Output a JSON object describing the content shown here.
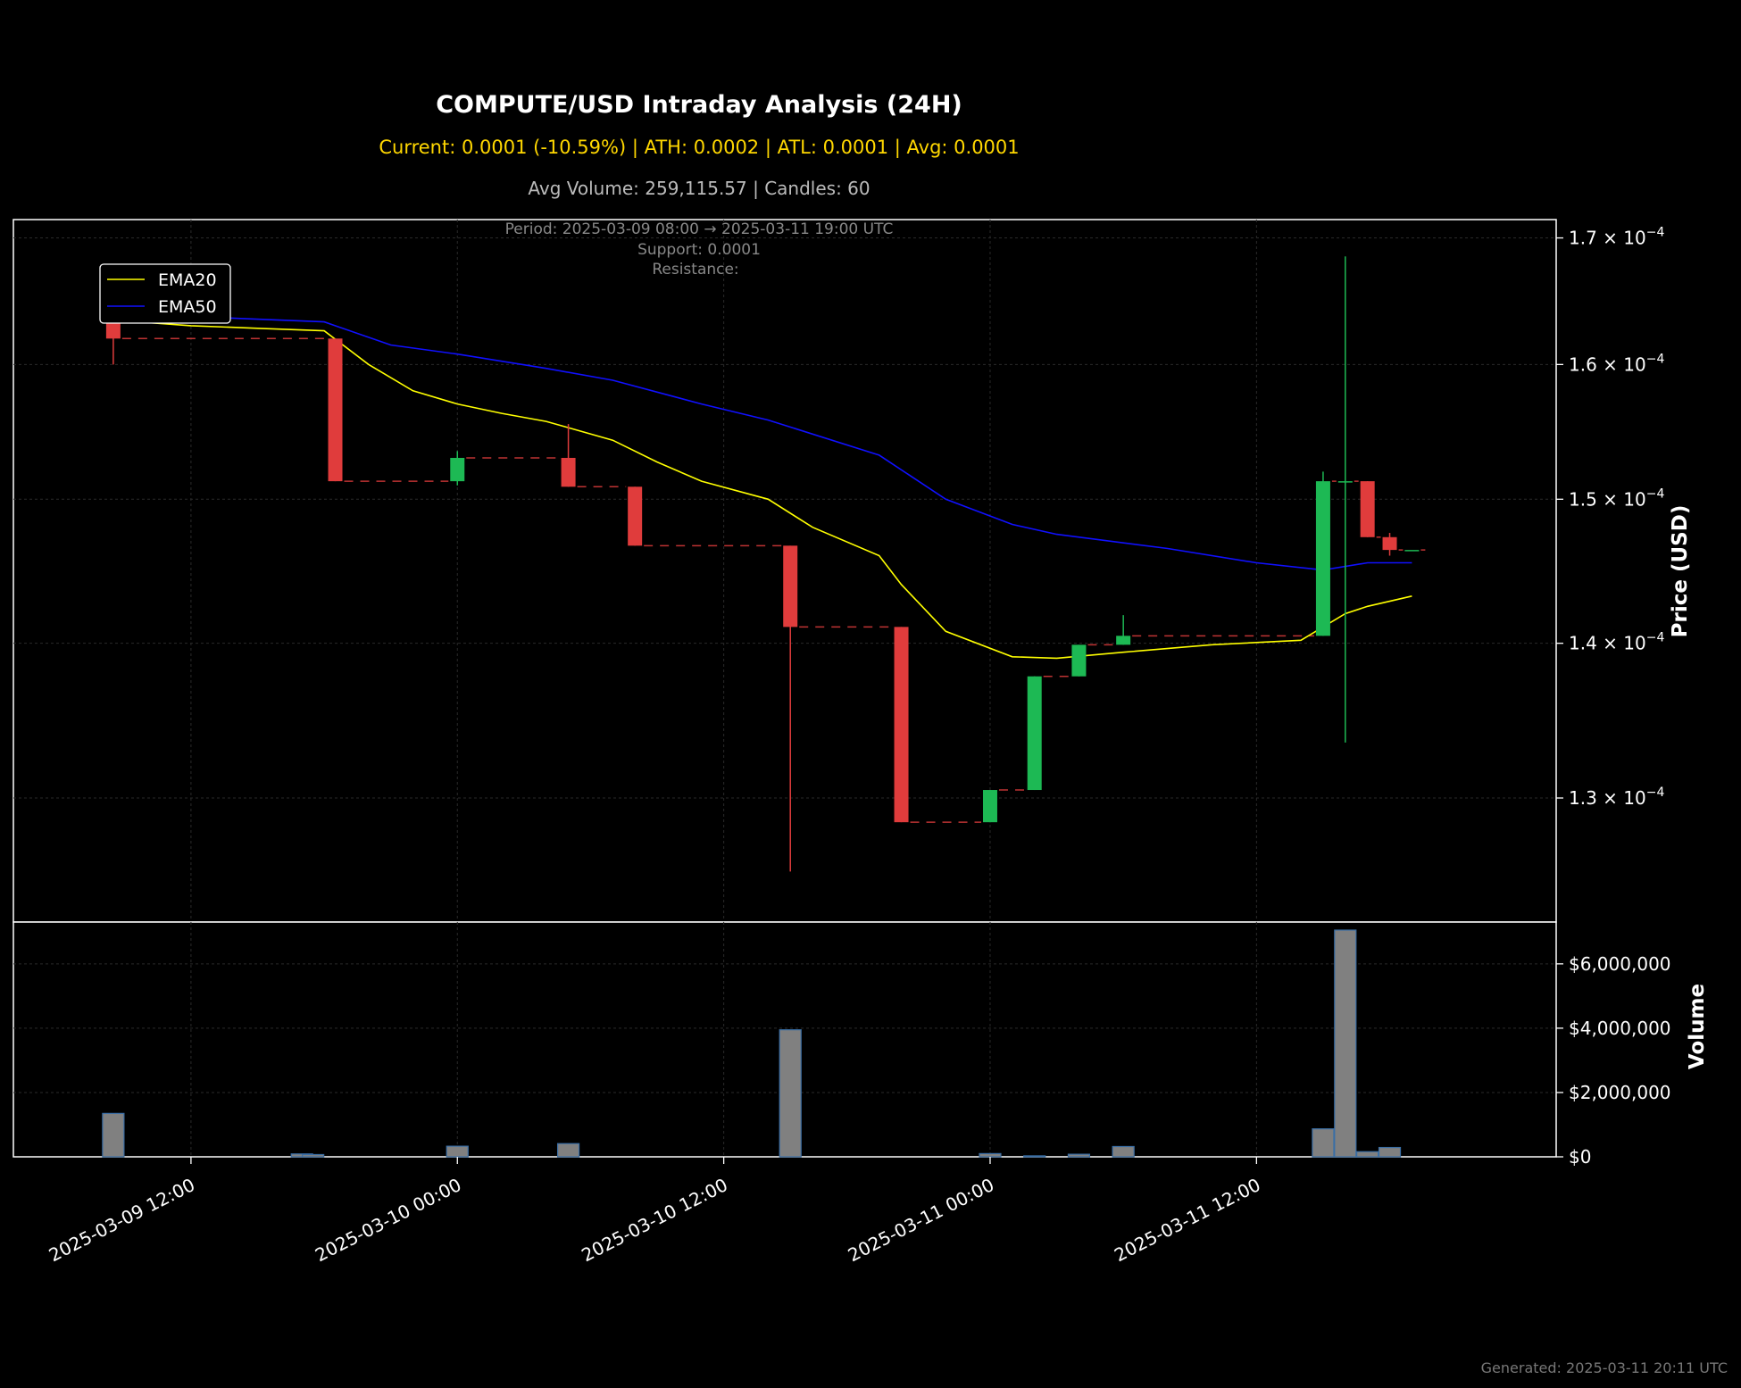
{
  "header": {
    "title": "COMPUTE/USD Intraday Analysis (24H)",
    "stats_line": "Current: 0.0001 (-10.59%) | ATH: 0.0002 | ATL: 0.0001 | Avg: 0.0001",
    "volume_line": "Avg Volume: 259,115.57 | Candles: 60"
  },
  "annotations": {
    "period": "Period: 2025-03-09 08:00 → 2025-03-11 19:00 UTC",
    "support": "Support: 0.0001",
    "resistance": "Resistance:"
  },
  "footer": {
    "generated": "Generated: 2025-03-11 20:11 UTC"
  },
  "colors": {
    "background": "#000000",
    "up": "#1db954",
    "down": "#e03c3c",
    "ema20": "#ffff00",
    "ema50": "#1010ff",
    "volume_bar": "#808080",
    "volume_edge": "#3a6ea5",
    "stats_text": "#ffd700",
    "muted_text": "#bbbbbb",
    "grid": "#2a2a2a"
  },
  "chart_data": {
    "type": "candlestick",
    "price_axis": {
      "label": "Price (USD)",
      "scale": "log",
      "range": [
        0.0001225,
        0.0001715
      ],
      "ticks": [
        0.00013,
        0.00014,
        0.00015,
        0.00016,
        0.00017
      ],
      "tick_labels": [
        {
          "mantissa": "1.3",
          "exp": "−4"
        },
        {
          "mantissa": "1.4",
          "exp": "−4"
        },
        {
          "mantissa": "1.5",
          "exp": "−4"
        },
        {
          "mantissa": "1.6",
          "exp": "−4"
        },
        {
          "mantissa": "1.7",
          "exp": "−4"
        }
      ]
    },
    "volume_axis": {
      "label": "Volume",
      "range": [
        0,
        7300000
      ],
      "ticks": [
        0,
        2000000,
        4000000,
        6000000
      ],
      "tick_labels": [
        "$0",
        "$2,000,000",
        "$4,000,000",
        "$6,000,000"
      ]
    },
    "time_axis": {
      "range": [
        "2025-03-09 04:00",
        "2025-03-12 01:30"
      ],
      "ticks": [
        "2025-03-09 12:00",
        "2025-03-10 00:00",
        "2025-03-10 12:00",
        "2025-03-11 00:00",
        "2025-03-11 12:00"
      ],
      "tick_labels": [
        "2025-03-09 12:00",
        "2025-03-10 00:00",
        "2025-03-10 12:00",
        "2025-03-11 00:00",
        "2025-03-11 12:00"
      ]
    },
    "legend": {
      "position": "upper-left",
      "entries": [
        {
          "label": "EMA20",
          "color": "#ffff00"
        },
        {
          "label": "EMA50",
          "color": "#1010ff"
        }
      ]
    },
    "candles": [
      {
        "t": "2025-03-09 08:30",
        "o": 0.0001635,
        "h": 0.0001637,
        "l": 0.00016,
        "c": 0.000162
      },
      {
        "t": "2025-03-09 18:30",
        "o": 0.000162,
        "h": 0.000162,
        "l": 0.0001513,
        "c": 0.0001513
      },
      {
        "t": "2025-03-10 00:00",
        "o": 0.0001513,
        "h": 0.0001535,
        "l": 0.000151,
        "c": 0.000153
      },
      {
        "t": "2025-03-10 05:00",
        "o": 0.000153,
        "h": 0.0001555,
        "l": 0.0001509,
        "c": 0.0001509
      },
      {
        "t": "2025-03-10 08:00",
        "o": 0.0001509,
        "h": 0.0001509,
        "l": 0.0001467,
        "c": 0.0001467
      },
      {
        "t": "2025-03-10 15:00",
        "o": 0.0001467,
        "h": 0.0001467,
        "l": 0.0001255,
        "c": 0.0001411
      },
      {
        "t": "2025-03-10 20:00",
        "o": 0.0001411,
        "h": 0.0001411,
        "l": 0.0001285,
        "c": 0.0001285
      },
      {
        "t": "2025-03-11 00:00",
        "o": 0.0001285,
        "h": 0.0001305,
        "l": 0.0001285,
        "c": 0.0001305
      },
      {
        "t": "2025-03-11 02:00",
        "o": 0.0001305,
        "h": 0.0001378,
        "l": 0.0001305,
        "c": 0.0001378
      },
      {
        "t": "2025-03-11 04:00",
        "o": 0.0001378,
        "h": 0.0001399,
        "l": 0.0001378,
        "c": 0.0001399
      },
      {
        "t": "2025-03-11 06:00",
        "o": 0.0001399,
        "h": 0.0001419,
        "l": 0.0001399,
        "c": 0.0001405
      },
      {
        "t": "2025-03-11 15:00",
        "o": 0.0001405,
        "h": 0.000152,
        "l": 0.0001405,
        "c": 0.0001513
      },
      {
        "t": "2025-03-11 16:00",
        "o": 0.0001513,
        "h": 0.0001685,
        "l": 0.0001335,
        "c": 0.0001513
      },
      {
        "t": "2025-03-11 17:00",
        "o": 0.0001513,
        "h": 0.0001513,
        "l": 0.0001473,
        "c": 0.0001473
      },
      {
        "t": "2025-03-11 18:00",
        "o": 0.0001473,
        "h": 0.0001476,
        "l": 0.000146,
        "c": 0.0001464
      },
      {
        "t": "2025-03-11 19:00",
        "o": 0.0001464,
        "h": 0.0001464,
        "l": 0.0001464,
        "c": 0.0001464
      }
    ],
    "ema20": [
      [
        "2025-03-09 08:00",
        0.0001635
      ],
      [
        "2025-03-09 12:00",
        0.000163
      ],
      [
        "2025-03-09 15:00",
        0.0001628
      ],
      [
        "2025-03-09 18:00",
        0.0001626
      ],
      [
        "2025-03-09 20:00",
        0.00016
      ],
      [
        "2025-03-09 22:00",
        0.000158
      ],
      [
        "2025-03-10 00:00",
        0.000157
      ],
      [
        "2025-03-10 02:00",
        0.0001563
      ],
      [
        "2025-03-10 04:00",
        0.0001557
      ],
      [
        "2025-03-10 07:00",
        0.0001543
      ],
      [
        "2025-03-10 09:00",
        0.0001527
      ],
      [
        "2025-03-10 11:00",
        0.0001513
      ],
      [
        "2025-03-10 14:00",
        0.00015
      ],
      [
        "2025-03-10 16:00",
        0.000148
      ],
      [
        "2025-03-10 19:00",
        0.000146
      ],
      [
        "2025-03-10 20:00",
        0.000144
      ],
      [
        "2025-03-10 22:00",
        0.0001408
      ],
      [
        "2025-03-11 01:00",
        0.0001391
      ],
      [
        "2025-03-11 03:00",
        0.000139
      ],
      [
        "2025-03-11 06:00",
        0.0001394
      ],
      [
        "2025-03-11 10:00",
        0.0001399
      ],
      [
        "2025-03-11 14:00",
        0.0001402
      ],
      [
        "2025-03-11 16:00",
        0.000142
      ],
      [
        "2025-03-11 17:00",
        0.0001425
      ],
      [
        "2025-03-11 19:00",
        0.0001432
      ]
    ],
    "ema50": [
      [
        "2025-03-09 08:00",
        0.000164
      ],
      [
        "2025-03-09 18:00",
        0.0001633
      ],
      [
        "2025-03-09 21:00",
        0.0001615
      ],
      [
        "2025-03-10 00:00",
        0.0001608
      ],
      [
        "2025-03-10 04:00",
        0.0001597
      ],
      [
        "2025-03-10 07:00",
        0.0001588
      ],
      [
        "2025-03-10 11:00",
        0.000157
      ],
      [
        "2025-03-10 14:00",
        0.0001558
      ],
      [
        "2025-03-10 19:00",
        0.0001532
      ],
      [
        "2025-03-10 22:00",
        0.00015
      ],
      [
        "2025-03-11 01:00",
        0.0001482
      ],
      [
        "2025-03-11 03:00",
        0.0001475
      ],
      [
        "2025-03-11 08:00",
        0.0001465
      ],
      [
        "2025-03-11 12:00",
        0.0001455
      ],
      [
        "2025-03-11 15:00",
        0.000145
      ],
      [
        "2025-03-11 17:00",
        0.0001455
      ],
      [
        "2025-03-11 19:00",
        0.0001455
      ]
    ],
    "volume": [
      {
        "t": "2025-03-09 08:30",
        "v": 1350000
      },
      {
        "t": "2025-03-09 17:00",
        "v": 90000
      },
      {
        "t": "2025-03-09 17:30",
        "v": 70000
      },
      {
        "t": "2025-03-10 00:00",
        "v": 330000
      },
      {
        "t": "2025-03-10 05:00",
        "v": 410000
      },
      {
        "t": "2025-03-10 15:00",
        "v": 3950000
      },
      {
        "t": "2025-03-11 00:00",
        "v": 100000
      },
      {
        "t": "2025-03-11 02:00",
        "v": 30000
      },
      {
        "t": "2025-03-11 04:00",
        "v": 80000
      },
      {
        "t": "2025-03-11 06:00",
        "v": 320000
      },
      {
        "t": "2025-03-11 15:00",
        "v": 870000
      },
      {
        "t": "2025-03-11 16:00",
        "v": 7050000
      },
      {
        "t": "2025-03-11 17:00",
        "v": 160000
      },
      {
        "t": "2025-03-11 18:00",
        "v": 290000
      }
    ]
  }
}
